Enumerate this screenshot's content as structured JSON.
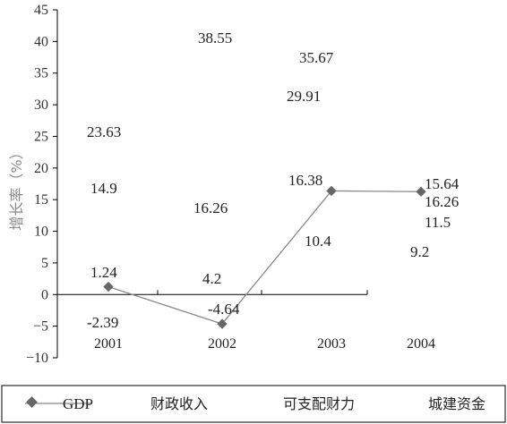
{
  "chart_data": {
    "type": "line",
    "ylabel": "增长率（%）",
    "ylim": [
      -10,
      45
    ],
    "yticks": [
      "-10",
      "-5",
      "0",
      "5",
      "10",
      "15",
      "20",
      "25",
      "30",
      "35",
      "40",
      "45"
    ],
    "categories": [
      "2001",
      "2002",
      "2003",
      "2004"
    ],
    "series": [
      {
        "name": "GDP",
        "values": [
          1.24,
          -4.64,
          16.38,
          16.26
        ],
        "labels": [
          "1.24",
          "-4.64",
          "16.38",
          "16.26"
        ]
      },
      {
        "name": "财政收入",
        "values": [
          23.63,
          38.55,
          35.67,
          15.64
        ],
        "labels": [
          "23.63",
          "38.55",
          "35.67",
          "15.64"
        ]
      },
      {
        "name": "可支配财力",
        "values": [
          14.9,
          16.26,
          29.91,
          11.5
        ],
        "labels": [
          "14.9",
          "16.26",
          "29.91",
          "11.5"
        ]
      },
      {
        "name": "城建资金",
        "values": [
          -2.39,
          4.2,
          10.4,
          9.2
        ],
        "labels": [
          "-2.39",
          "4.2",
          "10.4",
          "9.2"
        ]
      }
    ],
    "legend_position": "bottom",
    "grid": false
  },
  "colors": {
    "gdp_line": "#888888",
    "gdp_marker": "#666666",
    "axis": "#000000"
  }
}
